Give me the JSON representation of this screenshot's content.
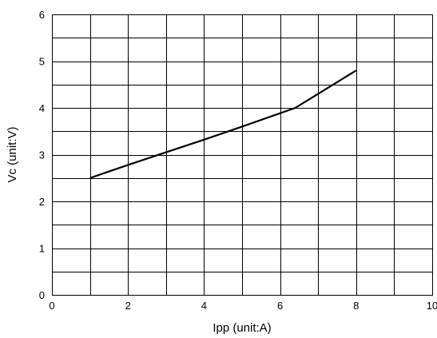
{
  "chart_data": {
    "type": "line",
    "title": "",
    "xlabel": "Ipp (unit:A)",
    "ylabel": "Vc (unit:V)",
    "xlim": [
      0,
      10
    ],
    "ylim": [
      0,
      6
    ],
    "grid": true,
    "legend": "none",
    "x_ticks": [
      0,
      2,
      4,
      6,
      8,
      10
    ],
    "y_ticks": [
      0,
      1,
      2,
      3,
      4,
      5,
      6
    ],
    "x_minor_step": 1,
    "y_minor_step": 0.5,
    "series": [
      {
        "color": "#000000",
        "points": [
          {
            "x": 1.0,
            "y": 2.5
          },
          {
            "x": 2.0,
            "y": 2.78
          },
          {
            "x": 3.0,
            "y": 3.05
          },
          {
            "x": 4.0,
            "y": 3.32
          },
          {
            "x": 5.0,
            "y": 3.6
          },
          {
            "x": 6.4,
            "y": 4.0
          },
          {
            "x": 8.0,
            "y": 4.8
          }
        ]
      }
    ]
  }
}
